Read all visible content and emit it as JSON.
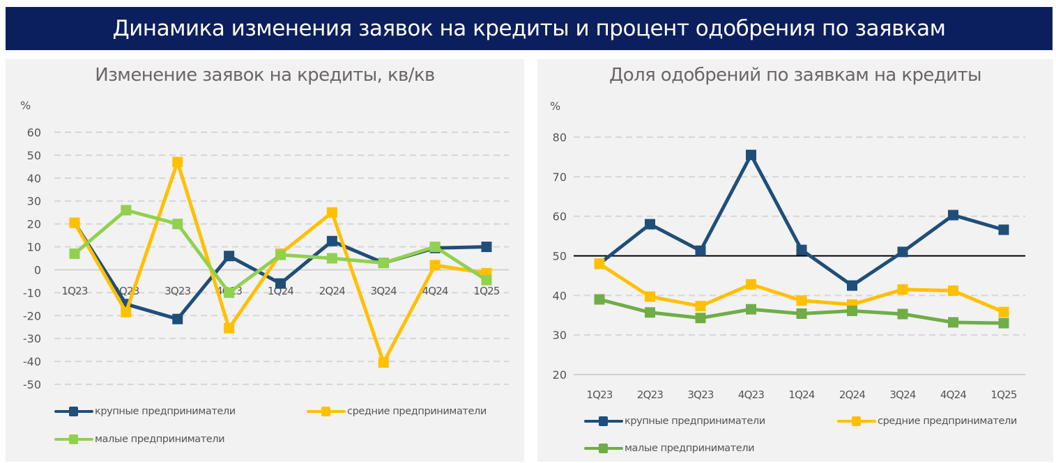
{
  "banner": {
    "title": "Динамика изменения заявок на кредиты и процент одобрения по заявкам"
  },
  "colors": {
    "large": "#1f4e79",
    "medium": "#ffc000",
    "small_left": "#92d050",
    "small_right": "#70ad47",
    "banner": "#0b1f5e",
    "panel": "#f2f2f2"
  },
  "chart_data": [
    {
      "type": "line",
      "title": "Изменение заявок на кредиты, кв/кв",
      "ylabel": "%",
      "xlabel": "",
      "ylim": [
        -50,
        60
      ],
      "yticks": [
        "60",
        "50",
        "40",
        "30",
        "20",
        "10",
        "0",
        "-10",
        "-20",
        "-30",
        "-40",
        "-50"
      ],
      "ytick_values": [
        60,
        50,
        40,
        30,
        20,
        10,
        0,
        -10,
        -20,
        -30,
        -40,
        -50
      ],
      "categories": [
        "1Q23",
        "2Q23",
        "3Q23",
        "4Q23",
        "1Q24",
        "2Q24",
        "3Q24",
        "4Q24",
        "1Q25"
      ],
      "grid": "dashed horizontal",
      "legend": "bottom",
      "series": [
        {
          "name": "крупные предприниматели",
          "color": "#1f4e79",
          "values": [
            20.5,
            -15,
            -21.5,
            6,
            -6,
            12.5,
            3,
            9.5,
            10
          ]
        },
        {
          "name": "средние предприниматели",
          "color": "#ffc000",
          "values": [
            20.5,
            -18.5,
            47,
            -25.5,
            7,
            25,
            -40.5,
            2,
            -1.5
          ]
        },
        {
          "name": "малые предприниматели",
          "color": "#92d050",
          "values": [
            7,
            26,
            20,
            -10,
            6.5,
            5,
            3,
            10,
            -4.5
          ]
        }
      ]
    },
    {
      "type": "line",
      "title": "Доля одобрений по заявкам на кредиты",
      "ylabel": "%",
      "xlabel": "",
      "ylim": [
        20,
        80
      ],
      "yticks": [
        "80",
        "70",
        "60",
        "50",
        "40",
        "30",
        "20"
      ],
      "ytick_values": [
        80,
        70,
        60,
        50,
        40,
        30,
        20
      ],
      "reference_line": 50,
      "categories": [
        "1Q23",
        "2Q23",
        "3Q23",
        "4Q23",
        "1Q24",
        "2Q24",
        "3Q24",
        "4Q24",
        "1Q25"
      ],
      "grid": "dashed horizontal",
      "legend": "bottom",
      "series": [
        {
          "name": "крупные предприниматели",
          "color": "#1f4e79",
          "values": [
            48,
            58,
            51.3,
            75.5,
            51.5,
            42.5,
            51,
            60.3,
            56.6
          ]
        },
        {
          "name": "средние предприниматели",
          "color": "#ffc000",
          "values": [
            48,
            39.7,
            37.3,
            42.8,
            38.7,
            37.7,
            41.5,
            41.2,
            35.8
          ]
        },
        {
          "name": "малые предприниматели",
          "color": "#70ad47",
          "values": [
            39,
            35.7,
            34.3,
            36.5,
            35.4,
            36.1,
            35.3,
            33.2,
            33
          ]
        }
      ]
    }
  ]
}
